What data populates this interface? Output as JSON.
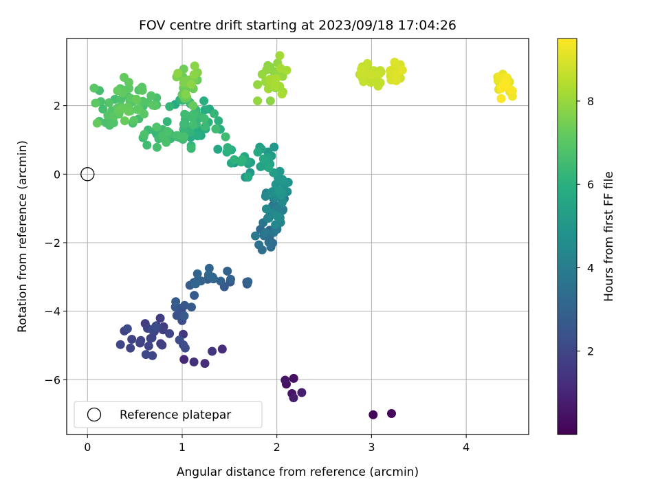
{
  "chart_data": {
    "type": "scatter",
    "title": "FOV centre drift starting at 2023/09/18 17:04:26",
    "xlabel": "Angular distance from reference (arcmin)",
    "ylabel": "Rotation from reference (arcmin)",
    "xlim": [
      -0.22,
      4.66
    ],
    "ylim": [
      -7.6,
      3.96
    ],
    "xticks": [
      0,
      1,
      2,
      3,
      4
    ],
    "yticks": [
      -6,
      -4,
      -2,
      0,
      2
    ],
    "grid": true,
    "legend": {
      "placement": "bottom-left",
      "entries": [
        {
          "label": "Reference platepar",
          "marker": "open-circle"
        }
      ]
    },
    "reference_point": {
      "x": 0,
      "y": 0
    },
    "colorbar": {
      "label": "Hours from first FF file",
      "colormap": "viridis",
      "range": [
        0,
        9.5
      ],
      "ticks": [
        2,
        4,
        6,
        8
      ]
    },
    "clusters": [
      {
        "hours": [
          0.0,
          0.3
        ],
        "cx": 3.1,
        "cy": -7.02,
        "sx": 0.08,
        "sy": 0.08,
        "n": 2
      },
      {
        "hours": [
          0.3,
          0.9
        ],
        "cx": 2.12,
        "cy": -6.05,
        "sx": 0.14,
        "sy": 0.3,
        "n": 6
      },
      {
        "hours": [
          0.9,
          1.6
        ],
        "cx": 1.2,
        "cy": -5.3,
        "sx": 0.18,
        "sy": 0.15,
        "n": 5
      },
      {
        "hours": [
          1.5,
          2.3
        ],
        "cx": 0.72,
        "cy": -4.75,
        "sx": 0.2,
        "sy": 0.3,
        "n": 30
      },
      {
        "hours": [
          2.2,
          2.8
        ],
        "cx": 1.0,
        "cy": -3.9,
        "sx": 0.1,
        "sy": 0.25,
        "n": 10
      },
      {
        "hours": [
          2.6,
          3.2
        ],
        "cx": 1.3,
        "cy": -3.05,
        "sx": 0.18,
        "sy": 0.18,
        "n": 20
      },
      {
        "hours": [
          3.1,
          4.0
        ],
        "cx": 1.9,
        "cy": -1.9,
        "sx": 0.06,
        "sy": 0.25,
        "n": 15
      },
      {
        "hours": [
          3.8,
          4.6
        ],
        "cx": 1.99,
        "cy": -0.95,
        "sx": 0.06,
        "sy": 0.3,
        "n": 30
      },
      {
        "hours": [
          4.5,
          5.1
        ],
        "cx": 2.06,
        "cy": -0.3,
        "sx": 0.05,
        "sy": 0.25,
        "n": 15
      },
      {
        "hours": [
          5.0,
          5.8
        ],
        "cx": 1.85,
        "cy": 0.35,
        "sx": 0.15,
        "sy": 0.2,
        "n": 25
      },
      {
        "hours": [
          5.5,
          6.2
        ],
        "cx": 1.52,
        "cy": 0.55,
        "sx": 0.08,
        "sy": 0.15,
        "n": 8
      },
      {
        "hours": [
          5.8,
          6.6
        ],
        "cx": 1.15,
        "cy": 1.45,
        "sx": 0.14,
        "sy": 0.35,
        "n": 45
      },
      {
        "hours": [
          6.2,
          6.8
        ],
        "cx": 0.85,
        "cy": 1.1,
        "sx": 0.12,
        "sy": 0.15,
        "n": 25
      },
      {
        "hours": [
          6.6,
          7.3
        ],
        "cx": 0.4,
        "cy": 2.1,
        "sx": 0.15,
        "sy": 0.33,
        "n": 65
      },
      {
        "hours": [
          7.2,
          7.9
        ],
        "cx": 1.05,
        "cy": 2.5,
        "sx": 0.07,
        "sy": 0.3,
        "n": 25
      },
      {
        "hours": [
          7.8,
          8.3
        ],
        "cx": 1.95,
        "cy": 2.8,
        "sx": 0.07,
        "sy": 0.3,
        "n": 30
      },
      {
        "hours": [
          8.4,
          8.8
        ],
        "cx": 3.0,
        "cy": 2.9,
        "sx": 0.07,
        "sy": 0.15,
        "n": 30
      },
      {
        "hours": [
          8.8,
          9.1
        ],
        "cx": 3.25,
        "cy": 3.0,
        "sx": 0.04,
        "sy": 0.15,
        "n": 20
      },
      {
        "hours": [
          9.1,
          9.5
        ],
        "cx": 4.4,
        "cy": 2.55,
        "sx": 0.04,
        "sy": 0.25,
        "n": 25
      }
    ]
  }
}
